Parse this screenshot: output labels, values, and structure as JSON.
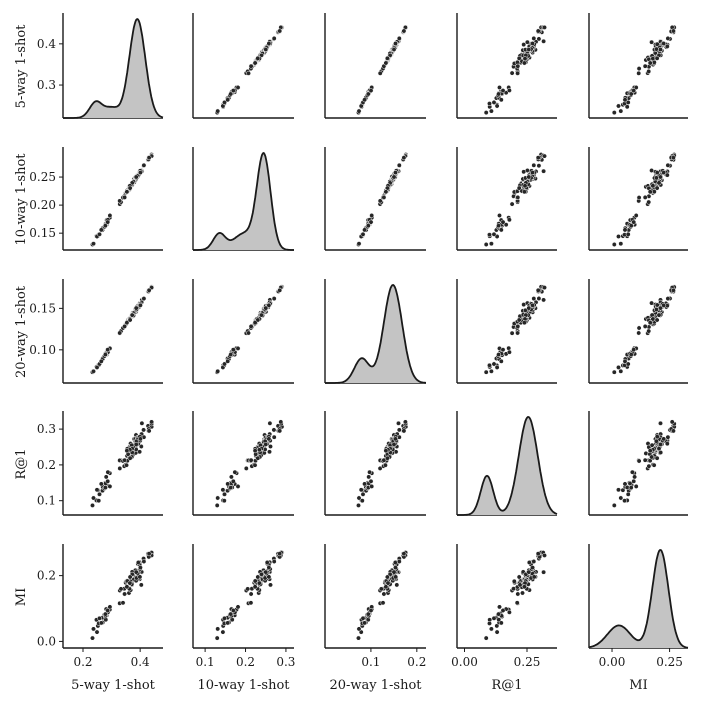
{
  "chart_data": {
    "type": "scatter",
    "title": "",
    "kind": "pairplot",
    "diagonal": "kde",
    "variables": [
      "5-way 1-shot",
      "10-way 1-shot",
      "20-way 1-shot",
      "R@1",
      "MI"
    ],
    "ticks": {
      "x": [
        {
          "values": [
            0.2,
            0.4
          ],
          "labels": [
            "0.2",
            "0.4"
          ]
        },
        {
          "values": [
            0.1,
            0.2,
            0.3
          ],
          "labels": [
            "0.1",
            "0.2",
            "0.3"
          ]
        },
        {
          "values": [
            0.1,
            0.2
          ],
          "labels": [
            "0.1",
            "0.2"
          ]
        },
        {
          "values": [
            0.0,
            0.25
          ],
          "labels": [
            "0.00",
            "0.25"
          ]
        },
        {
          "values": [
            0.0,
            0.25
          ],
          "labels": [
            "0.00",
            "0.25"
          ]
        }
      ],
      "y": [
        {
          "values": [
            0.3,
            0.4
          ],
          "labels": [
            "0.3",
            "0.4"
          ]
        },
        {
          "values": [
            0.15,
            0.2,
            0.25
          ],
          "labels": [
            "0.15",
            "0.20",
            "0.25"
          ]
        },
        {
          "values": [
            0.1,
            0.15
          ],
          "labels": [
            "0.10",
            "0.15"
          ]
        },
        {
          "values": [
            0.1,
            0.2,
            0.3
          ],
          "labels": [
            "0.1",
            "0.2",
            "0.3"
          ]
        },
        {
          "values": [
            0.0,
            0.2
          ],
          "labels": [
            "0.0",
            "0.2"
          ]
        }
      ]
    },
    "xlim": [
      [
        0.13,
        0.48
      ],
      [
        0.07,
        0.32
      ],
      [
        0.0,
        0.22
      ],
      [
        -0.03,
        0.37
      ],
      [
        -0.1,
        0.33
      ]
    ],
    "ylim": [
      [
        0.22,
        0.47
      ],
      [
        0.12,
        0.3
      ],
      [
        0.06,
        0.183
      ],
      [
        0.06,
        0.345
      ],
      [
        -0.02,
        0.29
      ]
    ],
    "data_range": {
      "min": [
        0.22,
        0.12,
        0.065,
        0.08,
        0.01
      ],
      "max": [
        0.44,
        0.29,
        0.176,
        0.32,
        0.27
      ]
    },
    "n_points": 100,
    "kde_modes": [
      [
        {
          "x": 0.245,
          "h": 0.16,
          "w": 0.022
        },
        {
          "x": 0.3,
          "h": 0.1,
          "w": 0.025
        },
        {
          "x": 0.39,
          "h": 1.0,
          "w": 0.028
        }
      ],
      [
        {
          "x": 0.135,
          "h": 0.17,
          "w": 0.015
        },
        {
          "x": 0.195,
          "h": 0.17,
          "w": 0.025
        },
        {
          "x": 0.245,
          "h": 1.0,
          "w": 0.017
        }
      ],
      [
        {
          "x": 0.08,
          "h": 0.25,
          "w": 0.016
        },
        {
          "x": 0.148,
          "h": 1.0,
          "w": 0.02
        }
      ],
      [
        {
          "x": 0.09,
          "h": 0.4,
          "w": 0.025
        },
        {
          "x": 0.255,
          "h": 1.0,
          "w": 0.038
        }
      ],
      [
        {
          "x": 0.03,
          "h": 0.23,
          "w": 0.05
        },
        {
          "x": 0.21,
          "h": 1.0,
          "w": 0.035
        }
      ]
    ],
    "colors": {
      "points": "#262626",
      "point_edge": "#ffffff",
      "kde_fill": "#c4c4c4",
      "kde_line": "#1a1a1a",
      "axis": "#1a1a1a"
    }
  }
}
